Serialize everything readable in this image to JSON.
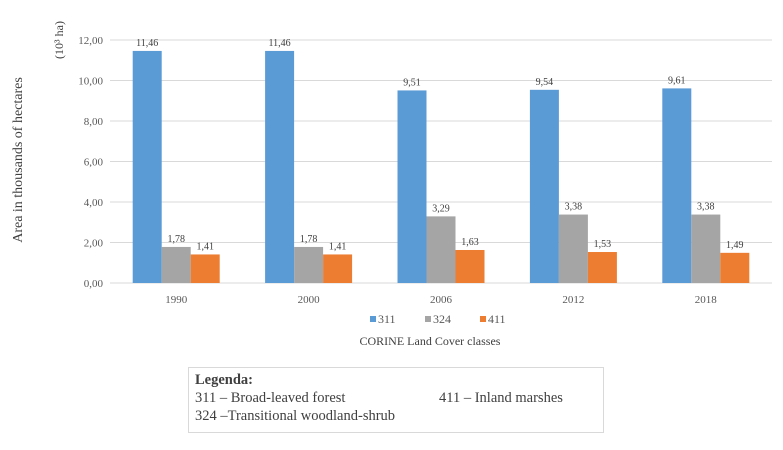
{
  "chart_data": {
    "type": "bar",
    "title": "",
    "ylabel": "Area in thousands of hectares",
    "yunit": "(10³ ha)",
    "xlabel": "CORINE Land Cover classes",
    "categories": [
      "1990",
      "2000",
      "2006",
      "2012",
      "2018"
    ],
    "series": [
      {
        "name": "311",
        "color": "#5b9bd5",
        "values": [
          11.46,
          11.46,
          9.51,
          9.54,
          9.61
        ],
        "labels": [
          "11,46",
          "11,46",
          "9,51",
          "9,54",
          "9,61"
        ]
      },
      {
        "name": "324",
        "color": "#a5a5a5",
        "values": [
          1.78,
          1.78,
          3.29,
          3.38,
          3.38
        ],
        "labels": [
          "1,78",
          "1,78",
          "3,29",
          "3,38",
          "3,38"
        ]
      },
      {
        "name": "411",
        "color": "#ed7d31",
        "values": [
          1.41,
          1.41,
          1.63,
          1.53,
          1.49
        ],
        "labels": [
          "1,41",
          "1,41",
          "1,63",
          "1,53",
          "1,49"
        ]
      }
    ],
    "ylim": [
      0,
      12
    ],
    "yticks": [
      0,
      2,
      4,
      6,
      8,
      10,
      12
    ],
    "ytick_labels": [
      "0,00",
      "2,00",
      "4,00",
      "6,00",
      "8,00",
      "10,00",
      "12,00"
    ],
    "grid": true,
    "legend_position": "bottom"
  },
  "legend_box": {
    "title": "Legenda:",
    "items": [
      "311 – Broad-leaved forest",
      "411 – Inland marshes",
      "324 –Transitional  woodland-shrub"
    ]
  }
}
